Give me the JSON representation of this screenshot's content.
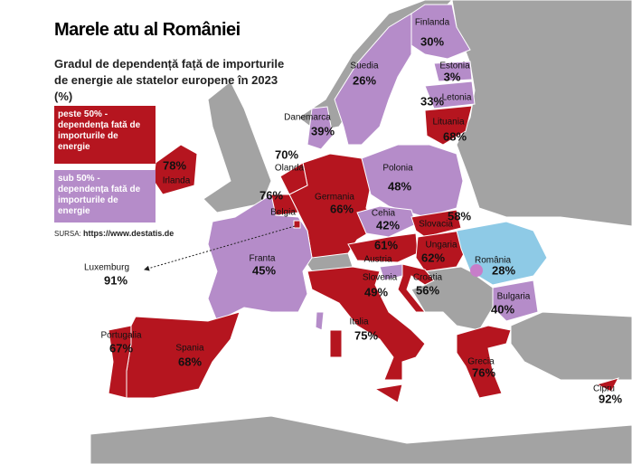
{
  "header": {
    "title": "Marele atu al României",
    "subtitle": "Gradul de dependență față de importurile de energie ale statelor europene în 2023 (%)"
  },
  "legend": [
    {
      "label": "peste 50% - dependența fată de importurile de energie",
      "color": "#b5151f"
    },
    {
      "label": "sub 50% - dependența fată de importurile de energie",
      "color": "#b58cc9"
    }
  ],
  "source": {
    "label": "SURSA:",
    "url": "https://www.destatis.de"
  },
  "countries": [
    {
      "name": "Finlanda",
      "label": "30%",
      "color": "#b58cc9"
    },
    {
      "name": "Suedia",
      "label": "26%",
      "color": "#b58cc9"
    },
    {
      "name": "Estonia",
      "label": "3%",
      "color": "#b58cc9"
    },
    {
      "name": "Letonia",
      "label": "33%",
      "color": "#b58cc9"
    },
    {
      "name": "Lituania",
      "label": "68%",
      "color": "#b5151f"
    },
    {
      "name": "Danemarca",
      "label": "39%",
      "color": "#b58cc9"
    },
    {
      "name": "Irlanda",
      "label": "78%",
      "color": "#b5151f"
    },
    {
      "name": "Olanda",
      "label": "70%",
      "color": "#b5151f"
    },
    {
      "name": "Belgia",
      "label": "76%",
      "color": "#b5151f"
    },
    {
      "name": "Germania",
      "label": "66%",
      "color": "#b5151f"
    },
    {
      "name": "Polonia",
      "label": "48%",
      "color": "#b58cc9"
    },
    {
      "name": "Cehia",
      "label": "42%",
      "color": "#b58cc9"
    },
    {
      "name": "Slovacia",
      "label": "58%",
      "color": "#b5151f"
    },
    {
      "name": "Austria",
      "label": "61%",
      "color": "#b5151f"
    },
    {
      "name": "Ungaria",
      "label": "62%",
      "color": "#b5151f"
    },
    {
      "name": "România",
      "label": "28%",
      "color": "#8ecae6"
    },
    {
      "name": "Slovenia",
      "label": "49%",
      "color": "#b58cc9"
    },
    {
      "name": "Croatia",
      "label": "56%",
      "color": "#b5151f"
    },
    {
      "name": "Bulgaria",
      "label": "40%",
      "color": "#b58cc9"
    },
    {
      "name": "Franta",
      "label": "45%",
      "color": "#b58cc9"
    },
    {
      "name": "Luxemburg",
      "label": "91%",
      "color": "#b5151f"
    },
    {
      "name": "Italia",
      "label": "75%",
      "color": "#b5151f"
    },
    {
      "name": "Portugalia",
      "label": "67%",
      "color": "#b5151f"
    },
    {
      "name": "Spania",
      "label": "68%",
      "color": "#b5151f"
    },
    {
      "name": "Grecia",
      "label": "76%",
      "color": "#b5151f"
    },
    {
      "name": "Cipru",
      "label": "92%",
      "color": "#b5151f"
    }
  ]
}
